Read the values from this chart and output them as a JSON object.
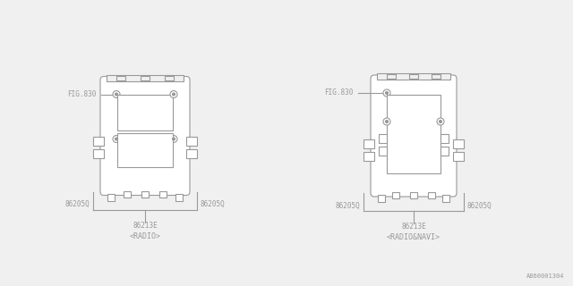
{
  "bg_color": "#f0f0f0",
  "line_color": "#999999",
  "text_color": "#999999",
  "fig_width": 6.4,
  "fig_height": 3.2,
  "watermark": "A860001304",
  "fig_label": "FIG.830",
  "part_86205Q": "86205Q",
  "part_86213E": "86213E",
  "label_radio": "<RADIO>",
  "label_radio_navi": "<RADIO&NAVI>"
}
